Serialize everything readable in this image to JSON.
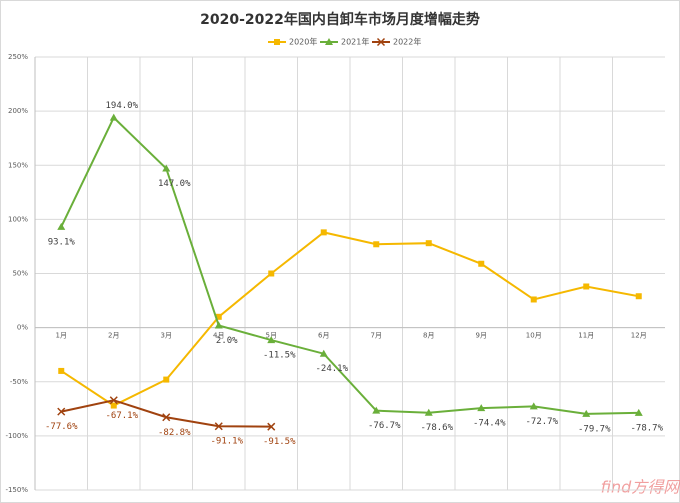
{
  "chart_data": {
    "type": "line",
    "title": "2020-2022年国内自卸车市场月度增幅走势",
    "categories": [
      "1月",
      "2月",
      "3月",
      "4月",
      "5月",
      "6月",
      "7月",
      "8月",
      "9月",
      "10月",
      "11月",
      "12月"
    ],
    "series": [
      {
        "name": "2020年",
        "color": "#f5b800",
        "marker": "square",
        "values": [
          -40,
          -72,
          -48,
          10,
          50,
          88,
          77,
          78,
          59,
          26,
          38,
          29
        ]
      },
      {
        "name": "2021年",
        "color": "#6aaf3a",
        "marker": "triangle",
        "values": [
          93.1,
          194.0,
          147.0,
          2.0,
          -11.5,
          -24.1,
          -76.7,
          -78.6,
          -74.4,
          -72.7,
          -79.7,
          -78.7
        ],
        "value_labels": [
          "93.1%",
          "194.0%",
          "147.0%",
          "2.0%",
          "-11.5%",
          "-24.1%",
          "-76.7%",
          "-78.6%",
          "-74.4%",
          "-72.7%",
          "-79.7%",
          "-78.7%"
        ]
      },
      {
        "name": "2022年",
        "color": "#a0420f",
        "marker": "x",
        "values": [
          -77.6,
          -67.1,
          -82.8,
          -91.1,
          -91.5,
          null,
          null,
          null,
          null,
          null,
          null,
          null
        ],
        "value_labels": [
          "-77.6%",
          "-67.1%",
          "-82.8%",
          "-91.1%",
          "-91.5%",
          null,
          null,
          null,
          null,
          null,
          null,
          null
        ]
      }
    ],
    "ylim": [
      -150,
      250
    ],
    "yticks": [
      {
        "value": -150,
        "label": "-150%"
      },
      {
        "value": -100,
        "label": "-100%"
      },
      {
        "value": -50,
        "label": "-50%"
      },
      {
        "value": 0,
        "label": "0%"
      },
      {
        "value": 50,
        "label": "50%"
      },
      {
        "value": 100,
        "label": "100%"
      },
      {
        "value": 150,
        "label": "150%"
      },
      {
        "value": 200,
        "label": "200%"
      },
      {
        "value": 250,
        "label": "250%"
      }
    ],
    "grid": true,
    "legend": "top",
    "watermark": "find方得网"
  }
}
